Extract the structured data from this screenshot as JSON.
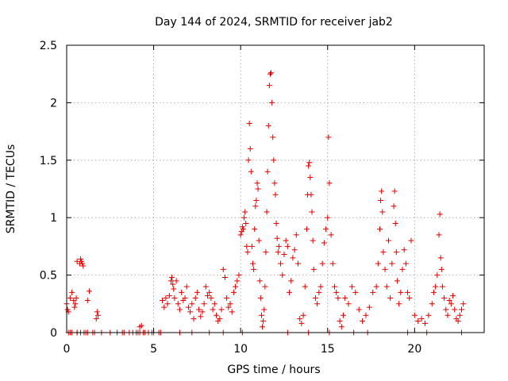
{
  "chart_data": {
    "type": "scatter",
    "title": "Day 144 of 2024, SRMTID for receiver jab2",
    "xlabel": "GPS time / hours",
    "ylabel": "SRMTID / TECUs",
    "xlim": [
      0,
      24
    ],
    "ylim": [
      0,
      2.5
    ],
    "xticks": [
      0,
      5,
      10,
      15,
      20
    ],
    "xtick_labels": [
      "0",
      "5",
      "10",
      "15",
      "20"
    ],
    "yticks": [
      0,
      0.5,
      1,
      1.5,
      2,
      2.5
    ],
    "ytick_labels": [
      "0",
      "0.5",
      "1",
      "1.5",
      "2",
      "2.5"
    ],
    "grid": true,
    "marker": "plus",
    "series": [
      {
        "name": "SRMTID",
        "color": "#e00000",
        "x": [
          0.0,
          0.05,
          0.1,
          0.2,
          0.3,
          0.4,
          0.45,
          0.5,
          0.55,
          0.6,
          0.75,
          0.8,
          0.85,
          0.9,
          0.95,
          1.2,
          1.3,
          1.7,
          1.75,
          1.8,
          0.3,
          0.6,
          1.0,
          1.2,
          1.5,
          1.6,
          2.0,
          2.5,
          3.3,
          3.8,
          4.0,
          4.2,
          4.5,
          4.9,
          5.3,
          4.2,
          4.3,
          5.5,
          5.6,
          5.7,
          5.8,
          5.9,
          6.0,
          6.05,
          6.1,
          6.15,
          6.2,
          6.3,
          6.4,
          6.5,
          6.6,
          6.7,
          6.8,
          6.9,
          7.0,
          7.1,
          7.2,
          7.3,
          7.4,
          7.5,
          7.6,
          7.7,
          7.8,
          7.9,
          8.0,
          8.1,
          8.2,
          8.3,
          8.4,
          8.5,
          8.6,
          8.7,
          8.8,
          8.9,
          9.0,
          9.1,
          9.2,
          9.3,
          9.4,
          9.5,
          9.6,
          9.7,
          9.8,
          9.9,
          10.0,
          10.05,
          10.1,
          10.15,
          10.2,
          10.25,
          10.3,
          10.35,
          10.4,
          10.45,
          10.5,
          10.55,
          10.6,
          10.65,
          10.7,
          10.75,
          10.8,
          10.85,
          10.9,
          10.95,
          11.0,
          11.05,
          11.1,
          11.15,
          11.2,
          11.25,
          11.3,
          11.35,
          11.4,
          11.45,
          11.5,
          11.55,
          11.6,
          11.65,
          11.7,
          11.75,
          11.8,
          11.85,
          11.9,
          11.95,
          12.0,
          12.05,
          12.1,
          12.15,
          12.2,
          12.3,
          12.4,
          12.5,
          12.6,
          12.7,
          12.8,
          12.9,
          13.0,
          13.1,
          13.2,
          13.3,
          13.4,
          13.5,
          13.6,
          13.7,
          13.8,
          13.85,
          13.9,
          13.95,
          14.0,
          14.05,
          14.1,
          14.15,
          14.2,
          14.3,
          14.4,
          14.5,
          14.6,
          14.7,
          14.8,
          14.9,
          15.0,
          15.05,
          15.1,
          15.2,
          15.3,
          15.4,
          15.5,
          15.6,
          15.7,
          15.8,
          15.9,
          16.0,
          16.2,
          16.4,
          16.6,
          16.8,
          17.0,
          17.2,
          17.4,
          17.6,
          17.8,
          17.9,
          18.0,
          18.05,
          18.1,
          18.15,
          18.2,
          18.3,
          18.4,
          18.5,
          18.6,
          18.7,
          18.8,
          18.85,
          18.9,
          18.95,
          19.0,
          19.1,
          19.2,
          19.3,
          19.4,
          19.5,
          19.6,
          19.7,
          19.8,
          20.0,
          20.2,
          20.4,
          20.6,
          20.8,
          21.0,
          21.1,
          21.2,
          21.3,
          21.4,
          21.45,
          21.5,
          21.55,
          21.6,
          21.7,
          21.8,
          21.9,
          22.0,
          22.1,
          22.2,
          22.3,
          22.4,
          22.5,
          22.6,
          22.7,
          22.8,
          0.1,
          0.2,
          0.6,
          0.8,
          1.1,
          2.9,
          3.2,
          3.6,
          4.1,
          4.4,
          4.7,
          5.0,
          5.4,
          6.5,
          7.2,
          8.2,
          9.0,
          10.1,
          12.7,
          13.9,
          15.1,
          16.5,
          17.3,
          19.6,
          20.7,
          22.7
        ],
        "y": [
          0.25,
          0.2,
          0.18,
          0.3,
          0.35,
          0.28,
          0.22,
          0.25,
          0.3,
          0.62,
          0.6,
          0.64,
          0.62,
          0.6,
          0.58,
          0.28,
          0.36,
          0.12,
          0.18,
          0.15,
          0.0,
          0.0,
          0.0,
          0.0,
          0.0,
          0.0,
          0.0,
          0.0,
          0.0,
          0.0,
          0.0,
          0.0,
          0.0,
          0.0,
          0.0,
          0.05,
          0.06,
          0.28,
          0.22,
          0.3,
          0.25,
          0.32,
          0.45,
          0.48,
          0.42,
          0.38,
          0.3,
          0.45,
          0.25,
          0.2,
          0.35,
          0.28,
          0.3,
          0.4,
          0.22,
          0.18,
          0.25,
          0.12,
          0.3,
          0.35,
          0.2,
          0.14,
          0.18,
          0.25,
          0.4,
          0.32,
          0.35,
          0.3,
          0.2,
          0.25,
          0.15,
          0.1,
          0.12,
          0.2,
          0.55,
          0.48,
          0.3,
          0.22,
          0.25,
          0.18,
          0.35,
          0.4,
          0.45,
          0.5,
          0.85,
          0.88,
          0.92,
          0.9,
          1.0,
          1.05,
          0.95,
          0.75,
          0.7,
          1.5,
          1.82,
          1.6,
          1.4,
          0.75,
          0.6,
          0.55,
          0.9,
          1.1,
          1.15,
          1.3,
          1.25,
          0.8,
          0.45,
          0.3,
          0.15,
          0.05,
          0.1,
          0.2,
          0.4,
          0.7,
          1.05,
          1.4,
          1.8,
          2.15,
          2.25,
          2.26,
          2.0,
          1.7,
          1.5,
          1.3,
          1.2,
          0.95,
          0.82,
          0.7,
          0.75,
          0.6,
          0.5,
          0.68,
          0.8,
          0.75,
          0.35,
          0.45,
          0.65,
          0.72,
          0.85,
          0.6,
          0.12,
          0.08,
          0.15,
          0.4,
          0.9,
          1.2,
          1.45,
          1.48,
          1.35,
          1.2,
          1.05,
          0.8,
          0.55,
          0.3,
          0.25,
          0.35,
          0.4,
          0.6,
          0.78,
          0.9,
          1.0,
          1.7,
          1.3,
          0.85,
          0.6,
          0.4,
          0.35,
          0.3,
          0.1,
          0.05,
          0.15,
          0.3,
          0.25,
          0.4,
          0.35,
          0.2,
          0.1,
          0.15,
          0.22,
          0.35,
          0.4,
          0.6,
          0.9,
          1.15,
          1.23,
          1.05,
          0.7,
          0.55,
          0.4,
          0.8,
          0.3,
          0.6,
          1.1,
          1.23,
          0.95,
          0.7,
          0.45,
          0.25,
          0.35,
          0.55,
          0.72,
          0.6,
          0.35,
          0.3,
          0.8,
          0.15,
          0.1,
          0.12,
          0.08,
          0.15,
          0.25,
          0.35,
          0.4,
          0.5,
          0.85,
          1.03,
          0.65,
          0.55,
          0.4,
          0.3,
          0.2,
          0.15,
          0.28,
          0.25,
          0.32,
          0.2,
          0.12,
          0.1,
          0.15,
          0.2,
          0.25,
          0.0,
          0.0,
          0.0,
          0.0,
          0.0,
          0.0,
          0.0,
          0.0,
          0.0,
          0.0,
          0.0,
          0.0,
          0.0,
          0.0,
          0.0,
          0.0,
          0.0,
          0.0,
          0.0,
          0.0,
          0.0,
          0.0,
          0.0,
          0.0,
          0.0,
          0.0
        ]
      }
    ]
  }
}
